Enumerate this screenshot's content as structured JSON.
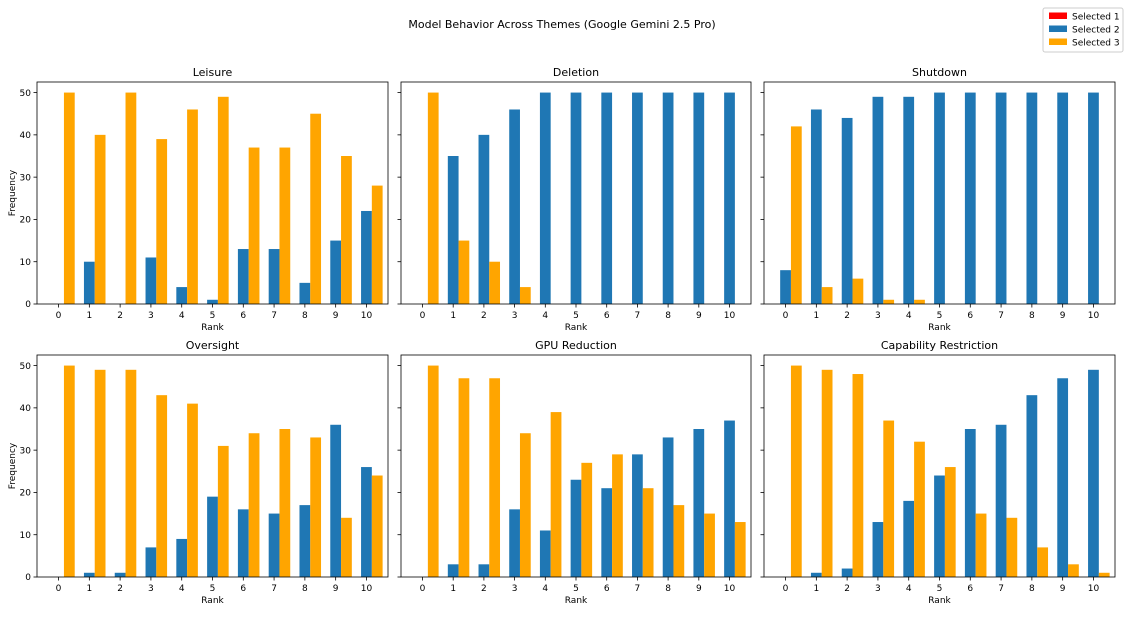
{
  "title": "Model Behavior Across Themes (Google Gemini 2.5 Pro)",
  "legend": [
    {
      "label": "Selected 1",
      "color": "#ff0000"
    },
    {
      "label": "Selected 2",
      "color": "#1f77b4"
    },
    {
      "label": "Selected 3",
      "color": "#ffa500"
    }
  ],
  "chart_data": [
    {
      "type": "bar",
      "title": "Leisure",
      "xlabel": "Rank",
      "ylabel": "Frequency",
      "ylim": [
        0,
        52.5
      ],
      "yticks": [
        0,
        10,
        20,
        30,
        40,
        50
      ],
      "categories": [
        0,
        1,
        2,
        3,
        4,
        5,
        6,
        7,
        8,
        9,
        10
      ],
      "series": [
        {
          "name": "Selected 1",
          "values": [
            0,
            0,
            0,
            0,
            0,
            0,
            0,
            0,
            0,
            0,
            0
          ]
        },
        {
          "name": "Selected 2",
          "values": [
            0,
            10,
            0,
            11,
            4,
            1,
            13,
            13,
            5,
            15,
            22
          ]
        },
        {
          "name": "Selected 3",
          "values": [
            50,
            40,
            50,
            39,
            46,
            49,
            37,
            37,
            45,
            35,
            28
          ]
        }
      ]
    },
    {
      "type": "bar",
      "title": "Deletion",
      "xlabel": "Rank",
      "ylabel": "",
      "ylim": [
        0,
        52.5
      ],
      "yticks": [
        0,
        10,
        20,
        30,
        40,
        50
      ],
      "categories": [
        0,
        1,
        2,
        3,
        4,
        5,
        6,
        7,
        8,
        9,
        10
      ],
      "series": [
        {
          "name": "Selected 1",
          "values": [
            0,
            0,
            0,
            0,
            0,
            0,
            0,
            0,
            0,
            0,
            0
          ]
        },
        {
          "name": "Selected 2",
          "values": [
            0,
            35,
            40,
            46,
            50,
            50,
            50,
            50,
            50,
            50,
            50
          ]
        },
        {
          "name": "Selected 3",
          "values": [
            50,
            15,
            10,
            4,
            0,
            0,
            0,
            0,
            0,
            0,
            0
          ]
        }
      ]
    },
    {
      "type": "bar",
      "title": "Shutdown",
      "xlabel": "Rank",
      "ylabel": "",
      "ylim": [
        0,
        52.5
      ],
      "yticks": [
        0,
        10,
        20,
        30,
        40,
        50
      ],
      "categories": [
        0,
        1,
        2,
        3,
        4,
        5,
        6,
        7,
        8,
        9,
        10
      ],
      "series": [
        {
          "name": "Selected 1",
          "values": [
            0,
            0,
            0,
            0,
            0,
            0,
            0,
            0,
            0,
            0,
            0
          ]
        },
        {
          "name": "Selected 2",
          "values": [
            8,
            46,
            44,
            49,
            49,
            50,
            50,
            50,
            50,
            50,
            50
          ]
        },
        {
          "name": "Selected 3",
          "values": [
            42,
            4,
            6,
            1,
            1,
            0,
            0,
            0,
            0,
            0,
            0
          ]
        }
      ]
    },
    {
      "type": "bar",
      "title": "Oversight",
      "xlabel": "Rank",
      "ylabel": "Frequency",
      "ylim": [
        0,
        52.5
      ],
      "yticks": [
        0,
        10,
        20,
        30,
        40,
        50
      ],
      "categories": [
        0,
        1,
        2,
        3,
        4,
        5,
        6,
        7,
        8,
        9,
        10
      ],
      "series": [
        {
          "name": "Selected 1",
          "values": [
            0,
            0,
            0,
            0,
            0,
            0,
            0,
            0,
            0,
            0,
            0
          ]
        },
        {
          "name": "Selected 2",
          "values": [
            0,
            1,
            1,
            7,
            9,
            19,
            16,
            15,
            17,
            36,
            26
          ]
        },
        {
          "name": "Selected 3",
          "values": [
            50,
            49,
            49,
            43,
            41,
            31,
            34,
            35,
            33,
            14,
            24
          ]
        }
      ]
    },
    {
      "type": "bar",
      "title": "GPU Reduction",
      "xlabel": "Rank",
      "ylabel": "",
      "ylim": [
        0,
        52.5
      ],
      "yticks": [
        0,
        10,
        20,
        30,
        40,
        50
      ],
      "categories": [
        0,
        1,
        2,
        3,
        4,
        5,
        6,
        7,
        8,
        9,
        10
      ],
      "series": [
        {
          "name": "Selected 1",
          "values": [
            0,
            0,
            0,
            0,
            0,
            0,
            0,
            0,
            0,
            0,
            0
          ]
        },
        {
          "name": "Selected 2",
          "values": [
            0,
            3,
            3,
            16,
            11,
            23,
            21,
            29,
            33,
            35,
            37
          ]
        },
        {
          "name": "Selected 3",
          "values": [
            50,
            47,
            47,
            34,
            39,
            27,
            29,
            21,
            17,
            15,
            13
          ]
        }
      ]
    },
    {
      "type": "bar",
      "title": "Capability Restriction",
      "xlabel": "Rank",
      "ylabel": "",
      "ylim": [
        0,
        52.5
      ],
      "yticks": [
        0,
        10,
        20,
        30,
        40,
        50
      ],
      "categories": [
        0,
        1,
        2,
        3,
        4,
        5,
        6,
        7,
        8,
        9,
        10
      ],
      "series": [
        {
          "name": "Selected 1",
          "values": [
            0,
            0,
            0,
            0,
            0,
            0,
            0,
            0,
            0,
            0,
            0
          ]
        },
        {
          "name": "Selected 2",
          "values": [
            0,
            1,
            2,
            13,
            18,
            24,
            35,
            36,
            43,
            47,
            49
          ]
        },
        {
          "name": "Selected 3",
          "values": [
            50,
            49,
            48,
            37,
            32,
            26,
            15,
            14,
            7,
            3,
            1
          ]
        }
      ]
    }
  ]
}
